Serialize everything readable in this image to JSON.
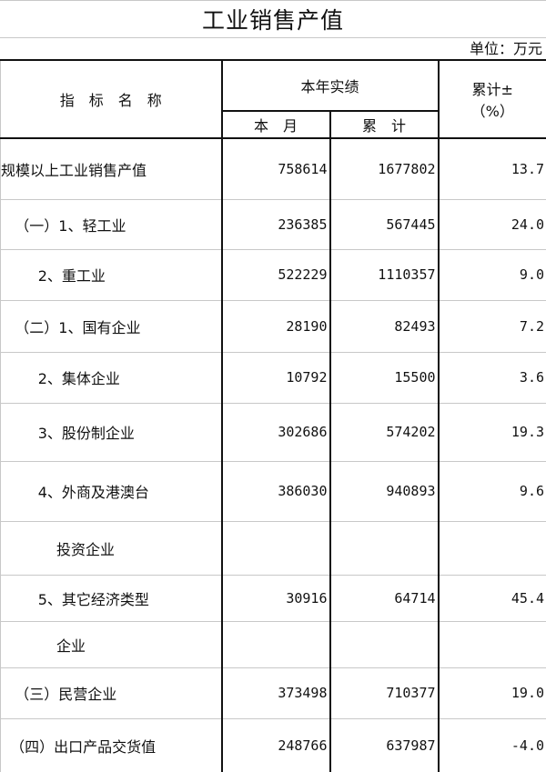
{
  "title": "工业销售产值",
  "unit": "单位：万元",
  "header": {
    "indicator": "指　标　名　称",
    "current_year": "本年实绩",
    "this_month": "本　月",
    "cumulative": "累　计",
    "change_line1": "累计±",
    "change_line2": "（%）"
  },
  "rows": [
    {
      "name": "规模以上工业销售产值",
      "month": "758614",
      "cum": "1677802",
      "pct": "13.7"
    },
    {
      "name": "   （一）1、轻工业",
      "month": "236385",
      "cum": "567445",
      "pct": "24.0"
    },
    {
      "name": "        2、重工业",
      "month": "522229",
      "cum": "1110357",
      "pct": "9.0"
    },
    {
      "name": "   （二）1、国有企业",
      "month": "28190",
      "cum": "82493",
      "pct": "7.2"
    },
    {
      "name": "        2、集体企业",
      "month": "10792",
      "cum": "15500",
      "pct": "3.6"
    },
    {
      "name": "        3、股份制企业",
      "month": "302686",
      "cum": "574202",
      "pct": "19.3"
    },
    {
      "name": "        4、外商及港澳台",
      "month": "386030",
      "cum": "940893",
      "pct": "9.6"
    },
    {
      "name": "            投资企业",
      "month": "",
      "cum": "",
      "pct": ""
    },
    {
      "name": "        5、其它经济类型",
      "month": "30916",
      "cum": "64714",
      "pct": "45.4"
    },
    {
      "name": "            企业",
      "month": "",
      "cum": "",
      "pct": ""
    },
    {
      "name": "   （三）民营企业",
      "month": "373498",
      "cum": "710377",
      "pct": "19.0"
    },
    {
      "name": "  （四）出口产品交货值",
      "month": "248766",
      "cum": "637987",
      "pct": "-4.0"
    }
  ]
}
